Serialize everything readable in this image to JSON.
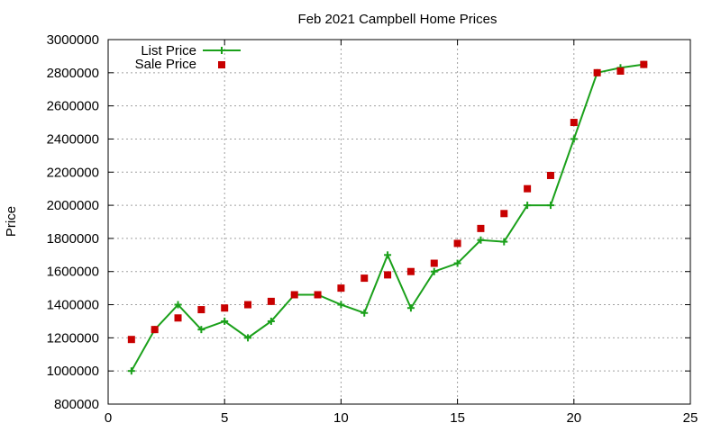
{
  "chart_data": {
    "type": "line",
    "title": "Feb 2021 Campbell Home Prices",
    "xlabel": "",
    "ylabel": "Price",
    "xlim": [
      0,
      25
    ],
    "ylim": [
      800000,
      3000000
    ],
    "xticks": [
      0,
      5,
      10,
      15,
      20,
      25
    ],
    "yticks": [
      800000,
      1000000,
      1200000,
      1400000,
      1600000,
      1800000,
      2000000,
      2200000,
      2400000,
      2600000,
      2800000,
      3000000
    ],
    "grid": true,
    "legend_position": "top-left",
    "series": [
      {
        "name": "List Price",
        "style": "line-with-plus-markers",
        "color": "#1aa01a",
        "x": [
          1,
          2,
          3,
          4,
          5,
          6,
          7,
          8,
          9,
          10,
          11,
          12,
          13,
          14,
          15,
          16,
          17,
          18,
          19,
          20,
          21,
          22,
          23
        ],
        "y": [
          1000000,
          1250000,
          1400000,
          1250000,
          1300000,
          1200000,
          1300000,
          1460000,
          1460000,
          1400000,
          1350000,
          1700000,
          1380000,
          1600000,
          1650000,
          1790000,
          1780000,
          2000000,
          2000000,
          2400000,
          2800000,
          2830000,
          2850000
        ]
      },
      {
        "name": "Sale Price",
        "style": "square-markers",
        "color": "#c80000",
        "x": [
          1,
          2,
          3,
          4,
          5,
          6,
          7,
          8,
          9,
          10,
          11,
          12,
          13,
          14,
          15,
          16,
          17,
          18,
          19,
          20,
          21,
          22,
          23
        ],
        "y": [
          1190000,
          1250000,
          1320000,
          1370000,
          1380000,
          1400000,
          1420000,
          1460000,
          1460000,
          1500000,
          1560000,
          1580000,
          1600000,
          1650000,
          1770000,
          1860000,
          1950000,
          2100000,
          2180000,
          2500000,
          2800000,
          2810000,
          2850000
        ]
      }
    ]
  }
}
